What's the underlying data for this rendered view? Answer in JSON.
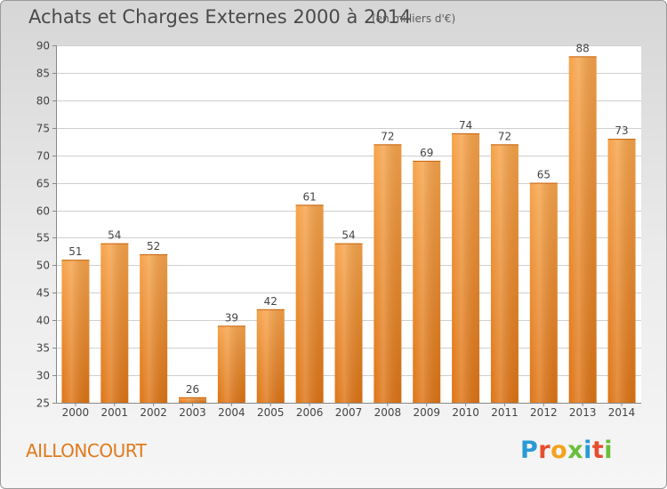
{
  "header": {
    "title": "Achats et Charges Externes 2000 à 2014",
    "subtitle": "(en milliers d'€)"
  },
  "footer": {
    "commune": "AILLONCOURT",
    "brand_letters": [
      "P",
      "r",
      "o",
      "x",
      "i",
      "t",
      "i"
    ],
    "brand_colors": [
      "#2a9ad6",
      "#e64d2e",
      "#f3a21d",
      "#6abf3a",
      "#2a9ad6",
      "#e64d2e",
      "#6abf3a"
    ]
  },
  "chart_data": {
    "type": "bar",
    "categories": [
      "2000",
      "2001",
      "2002",
      "2003",
      "2004",
      "2005",
      "2006",
      "2007",
      "2008",
      "2009",
      "2010",
      "2011",
      "2012",
      "2013",
      "2014"
    ],
    "values": [
      51,
      54,
      52,
      26,
      39,
      42,
      61,
      54,
      72,
      69,
      74,
      72,
      65,
      88,
      73
    ],
    "ylim": [
      25,
      90
    ],
    "yticks": [
      25,
      30,
      35,
      40,
      45,
      50,
      55,
      60,
      65,
      70,
      75,
      80,
      85,
      90
    ],
    "grid": true,
    "bar_color": "#f08a22"
  }
}
